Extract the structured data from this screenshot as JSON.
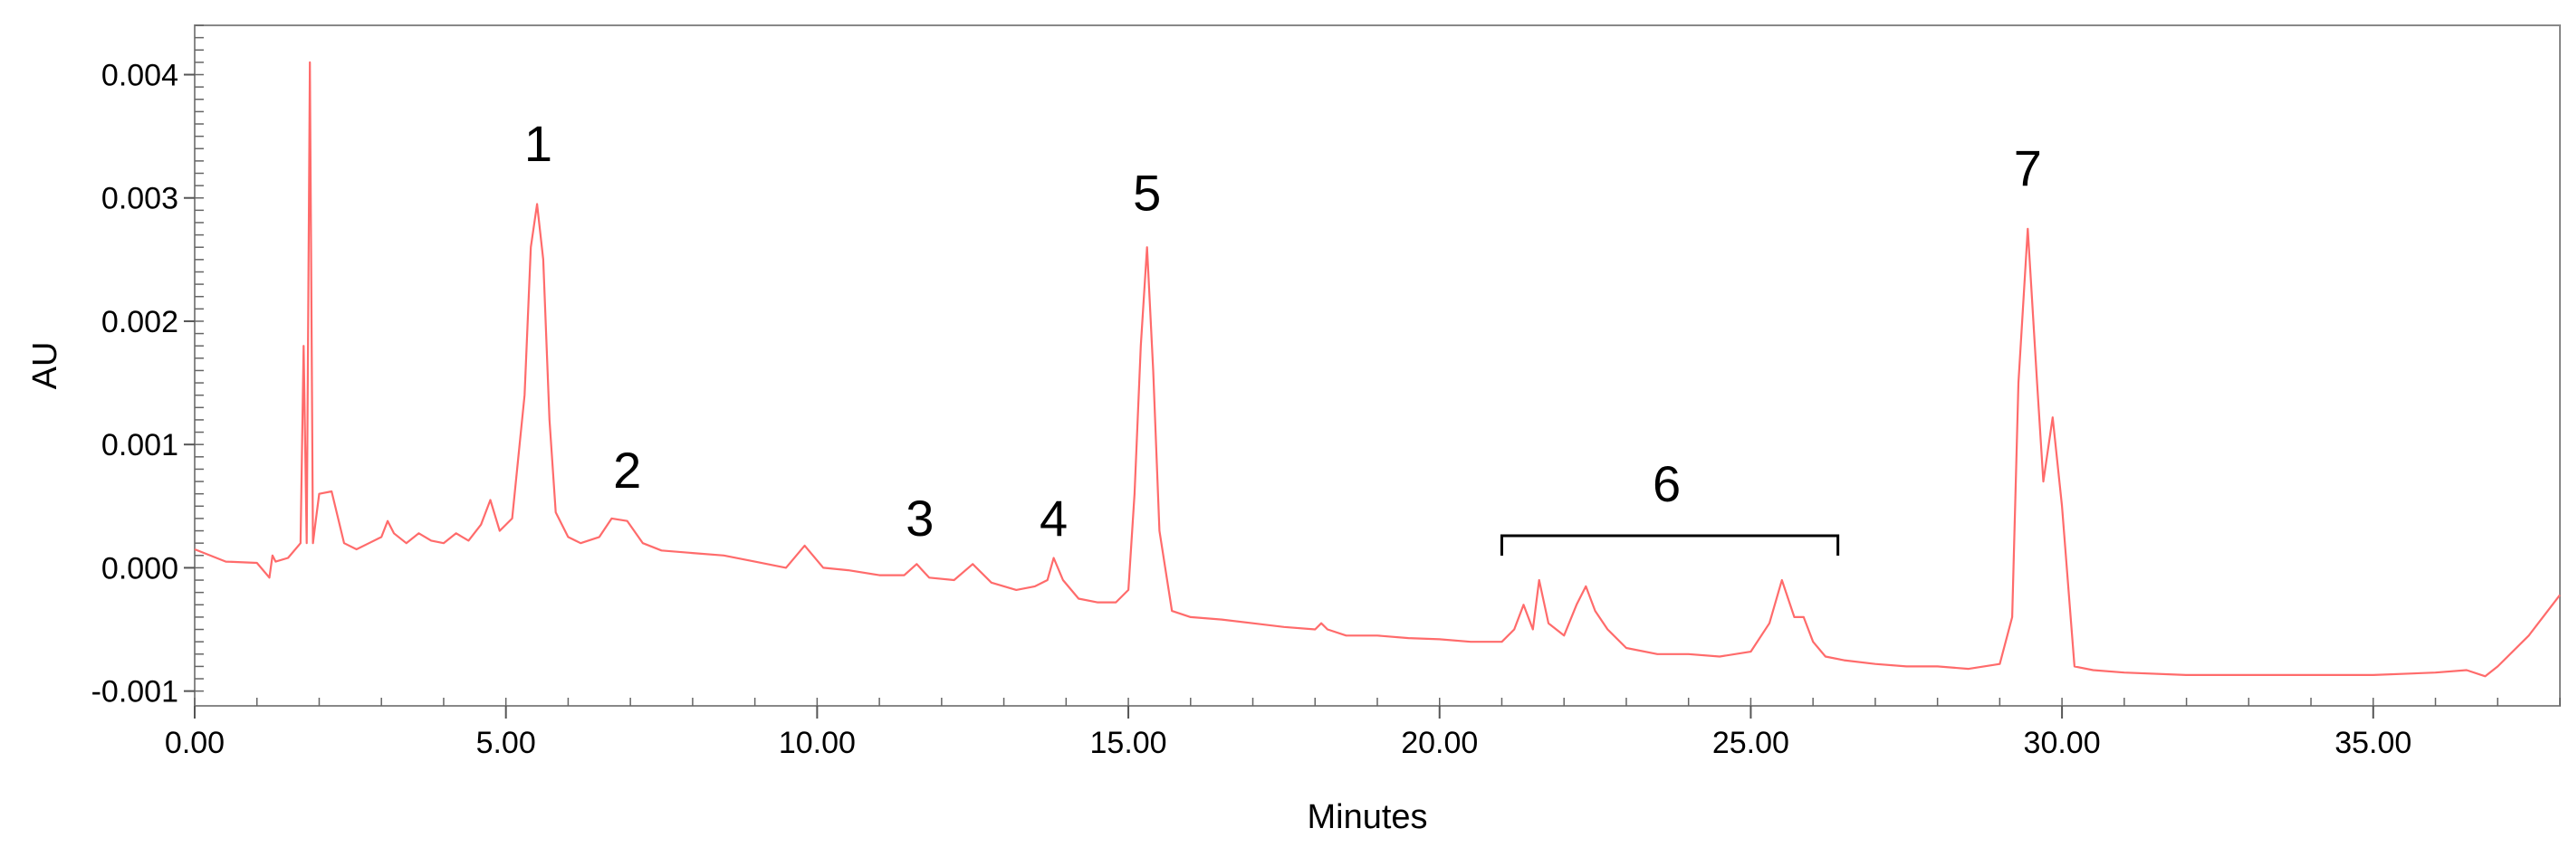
{
  "chart_data": {
    "type": "line",
    "title": "",
    "xlabel": "Minutes",
    "ylabel": "AU",
    "xlim": [
      0,
      38
    ],
    "ylim": [
      -0.00112,
      0.0044
    ],
    "x_ticks": [
      0,
      5,
      10,
      15,
      20,
      25,
      30,
      35
    ],
    "x_tick_labels": [
      "0.00",
      "5.00",
      "10.00",
      "15.00",
      "20.00",
      "25.00",
      "30.00",
      "35.00"
    ],
    "y_ticks": [
      -0.001,
      0.0,
      0.001,
      0.002,
      0.003,
      0.004
    ],
    "y_tick_labels": [
      "-0.001",
      "0.000",
      "0.001",
      "0.002",
      "0.003",
      "0.004"
    ],
    "grid": false,
    "line_color": "#ff6b6b",
    "series": [
      {
        "x": [
          0.0,
          0.5,
          1.0,
          1.2,
          1.25,
          1.3,
          1.5,
          1.7,
          1.75,
          1.8,
          1.85,
          1.9,
          1.95,
          2.0,
          2.2,
          2.4,
          2.6,
          2.8,
          3.0,
          3.1,
          3.2,
          3.4,
          3.6,
          3.8,
          4.0,
          4.2,
          4.4,
          4.6,
          4.75,
          4.9,
          5.1,
          5.3,
          5.4,
          5.5,
          5.6,
          5.7,
          5.8,
          6.0,
          6.2,
          6.5,
          6.7,
          6.95,
          7.2,
          7.5,
          8.0,
          8.5,
          9.0,
          9.5,
          9.8,
          10.1,
          10.5,
          11.0,
          11.4,
          11.6,
          11.8,
          12.2,
          12.5,
          12.8,
          13.2,
          13.5,
          13.7,
          13.8,
          13.95,
          14.2,
          14.5,
          14.8,
          15.0,
          15.1,
          15.2,
          15.3,
          15.4,
          15.5,
          15.7,
          16.0,
          16.5,
          17.0,
          17.5,
          18.0,
          18.1,
          18.2,
          18.5,
          19.0,
          19.5,
          20.0,
          20.5,
          21.0,
          21.2,
          21.35,
          21.5,
          21.6,
          21.75,
          22.0,
          22.2,
          22.35,
          22.5,
          22.7,
          23.0,
          23.5,
          24.0,
          24.5,
          25.0,
          25.3,
          25.5,
          25.7,
          25.85,
          26.0,
          26.2,
          26.5,
          27.0,
          27.5,
          28.0,
          28.5,
          29.0,
          29.2,
          29.3,
          29.45,
          29.6,
          29.7,
          29.85,
          30.0,
          30.2,
          30.5,
          31.0,
          32.0,
          33.0,
          34.0,
          35.0,
          36.0,
          36.5,
          36.8,
          37.0,
          37.5,
          38.0
        ],
        "y": [
          0.00015,
          5e-05,
          4e-05,
          -8e-05,
          0.0001,
          5e-05,
          8e-05,
          0.0002,
          0.0018,
          0.0002,
          0.0041,
          0.0002,
          0.0004,
          0.0006,
          0.00062,
          0.0002,
          0.00015,
          0.0002,
          0.00025,
          0.00038,
          0.00028,
          0.0002,
          0.00028,
          0.00022,
          0.0002,
          0.00028,
          0.00022,
          0.00035,
          0.00055,
          0.0003,
          0.0004,
          0.0014,
          0.0026,
          0.00295,
          0.0025,
          0.0012,
          0.00045,
          0.00025,
          0.0002,
          0.00025,
          0.0004,
          0.00038,
          0.0002,
          0.00014,
          0.00012,
          0.0001,
          5e-05,
          0.0,
          0.00018,
          0.0,
          -2e-05,
          -6e-05,
          -6e-05,
          3e-05,
          -8e-05,
          -0.0001,
          3e-05,
          -0.00012,
          -0.00018,
          -0.00015,
          -0.0001,
          8e-05,
          -0.0001,
          -0.00025,
          -0.00028,
          -0.00028,
          -0.00018,
          0.0006,
          0.0018,
          0.0026,
          0.0016,
          0.0003,
          -0.00035,
          -0.0004,
          -0.00042,
          -0.00045,
          -0.00048,
          -0.0005,
          -0.00045,
          -0.0005,
          -0.00055,
          -0.00055,
          -0.00057,
          -0.00058,
          -0.0006,
          -0.0006,
          -0.0005,
          -0.0003,
          -0.0005,
          -0.0001,
          -0.00045,
          -0.00055,
          -0.0003,
          -0.00015,
          -0.00035,
          -0.0005,
          -0.00065,
          -0.0007,
          -0.0007,
          -0.00072,
          -0.00068,
          -0.00045,
          -0.0001,
          -0.0004,
          -0.0004,
          -0.0006,
          -0.00072,
          -0.00075,
          -0.00078,
          -0.0008,
          -0.0008,
          -0.00082,
          -0.00078,
          -0.0004,
          0.0015,
          0.00275,
          0.0015,
          0.0007,
          0.00122,
          0.0005,
          -0.0008,
          -0.00083,
          -0.00085,
          -0.00087,
          -0.00087,
          -0.00087,
          -0.00087,
          -0.00085,
          -0.00083,
          -0.00088,
          -0.0008,
          -0.00055,
          -0.00022
        ]
      }
    ],
    "annotations": [
      {
        "label": "1",
        "x": 5.52,
        "y": 0.0033
      },
      {
        "label": "2",
        "x": 6.95,
        "y": 0.00065
      },
      {
        "label": "3",
        "x": 11.65,
        "y": 0.00026
      },
      {
        "label": "4",
        "x": 13.8,
        "y": 0.00026
      },
      {
        "label": "5",
        "x": 15.3,
        "y": 0.0029
      },
      {
        "label": "6",
        "x": 23.65,
        "y": 0.00054
      },
      {
        "label": "7",
        "x": 29.45,
        "y": 0.0031
      }
    ],
    "bracket": {
      "label": "6",
      "x_start": 21.0,
      "x_end": 26.4,
      "y": 0.00026
    }
  }
}
